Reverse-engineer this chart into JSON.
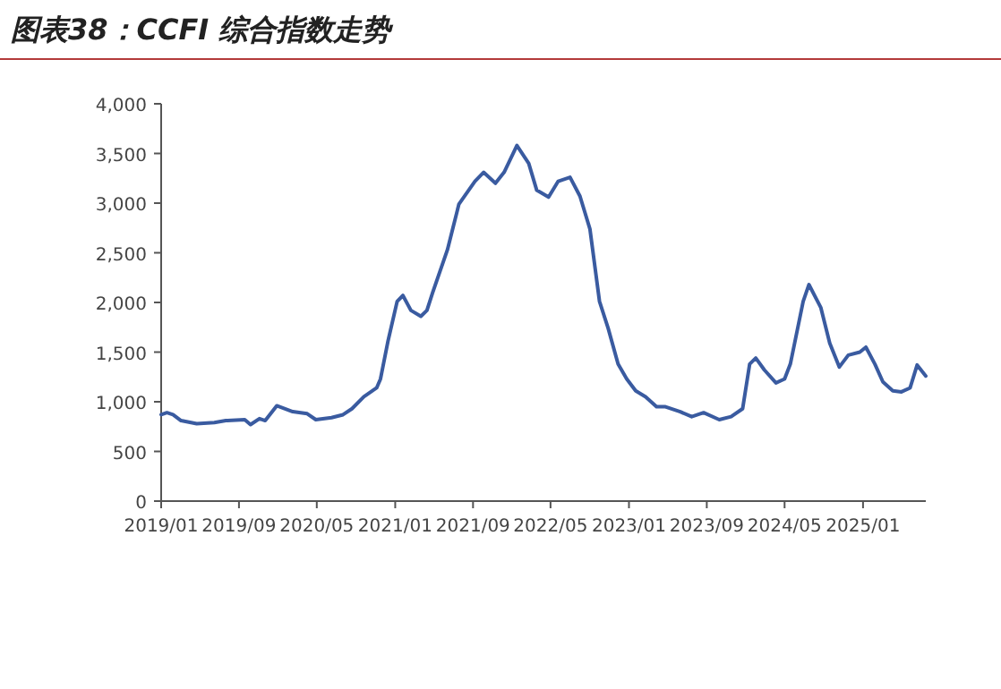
{
  "chart_data": {
    "type": "line",
    "title": "图表38：CCFI 综合指数走势",
    "x": [
      "2019-01-01",
      "2019-01-19",
      "2019-02-07",
      "2019-03-04",
      "2019-04-22",
      "2019-06-16",
      "2019-07-22",
      "2019-09-19",
      "2019-10-07",
      "2019-11-04",
      "2019-11-22",
      "2019-12-28",
      "2020-02-16",
      "2020-04-01",
      "2020-04-28",
      "2020-06-16",
      "2020-07-22",
      "2020-08-19",
      "2020-09-25",
      "2020-11-04",
      "2020-11-16",
      "2020-12-10",
      "2021-01-07",
      "2021-01-25",
      "2021-02-19",
      "2021-03-22",
      "2021-04-10",
      "2021-04-28",
      "2021-06-13",
      "2021-07-19",
      "2021-09-07",
      "2021-10-04",
      "2021-11-10",
      "2021-12-07",
      "2022-01-16",
      "2022-02-22",
      "2022-03-19",
      "2022-04-25",
      "2022-05-25",
      "2022-07-01",
      "2022-08-01",
      "2022-09-01",
      "2022-10-01",
      "2022-10-28",
      "2022-11-28",
      "2022-12-25",
      "2023-01-22",
      "2023-02-22",
      "2023-03-28",
      "2023-04-25",
      "2023-06-10",
      "2023-07-16",
      "2023-08-22",
      "2023-10-10",
      "2023-11-16",
      "2023-12-22",
      "2024-01-13",
      "2024-02-01",
      "2024-02-28",
      "2024-04-04",
      "2024-05-01",
      "2024-05-19",
      "2024-06-28",
      "2024-07-16",
      "2024-08-22",
      "2024-09-19",
      "2024-10-19",
      "2024-11-16",
      "2024-12-22",
      "2025-01-10",
      "2025-02-07",
      "2025-03-04",
      "2025-04-04",
      "2025-05-01",
      "2025-05-28",
      "2025-06-19",
      "2025-07-16"
    ],
    "series": [
      {
        "color": "#3a5ba0",
        "values": [
          870,
          890,
          870,
          810,
          780,
          790,
          810,
          820,
          770,
          830,
          810,
          960,
          900,
          880,
          820,
          840,
          870,
          930,
          1050,
          1140,
          1230,
          1620,
          2010,
          2070,
          1920,
          1860,
          1920,
          2100,
          2530,
          2990,
          3220,
          3310,
          3200,
          3310,
          3580,
          3400,
          3130,
          3060,
          3220,
          3260,
          3070,
          2740,
          2010,
          1740,
          1380,
          1230,
          1110,
          1050,
          950,
          950,
          900,
          850,
          890,
          820,
          850,
          930,
          1380,
          1440,
          1320,
          1190,
          1230,
          1380,
          2010,
          2180,
          1950,
          1590,
          1350,
          1470,
          1500,
          1550,
          1380,
          1200,
          1110,
          1100,
          1140,
          1370,
          1260
        ]
      }
    ],
    "xlim": [
      "2019-01-01",
      "2025-07-16"
    ],
    "xticks": [
      {
        "value": "2019-01-01",
        "label": "2019/01"
      },
      {
        "value": "2019-09-01",
        "label": "2019/09"
      },
      {
        "value": "2020-05-01",
        "label": "2020/05"
      },
      {
        "value": "2021-01-01",
        "label": "2021/01"
      },
      {
        "value": "2021-09-01",
        "label": "2021/09"
      },
      {
        "value": "2022-05-01",
        "label": "2022/05"
      },
      {
        "value": "2023-01-01",
        "label": "2023/01"
      },
      {
        "value": "2023-09-01",
        "label": "2023/09"
      },
      {
        "value": "2024-05-01",
        "label": "2024/05"
      },
      {
        "value": "2025-01-01",
        "label": "2025/01"
      }
    ],
    "ylim": [
      0,
      4000
    ],
    "yticks": [
      {
        "value": 0,
        "label": "0"
      },
      {
        "value": 500,
        "label": "500"
      },
      {
        "value": 1000,
        "label": "1,000"
      },
      {
        "value": 1500,
        "label": "1,500"
      },
      {
        "value": 2000,
        "label": "2,000"
      },
      {
        "value": 2500,
        "label": "2,500"
      },
      {
        "value": 3000,
        "label": "3,000"
      },
      {
        "value": 3500,
        "label": "3,500"
      },
      {
        "value": 4000,
        "label": "4,000"
      }
    ],
    "grid": false,
    "marker": "none",
    "line_style": "solid"
  }
}
